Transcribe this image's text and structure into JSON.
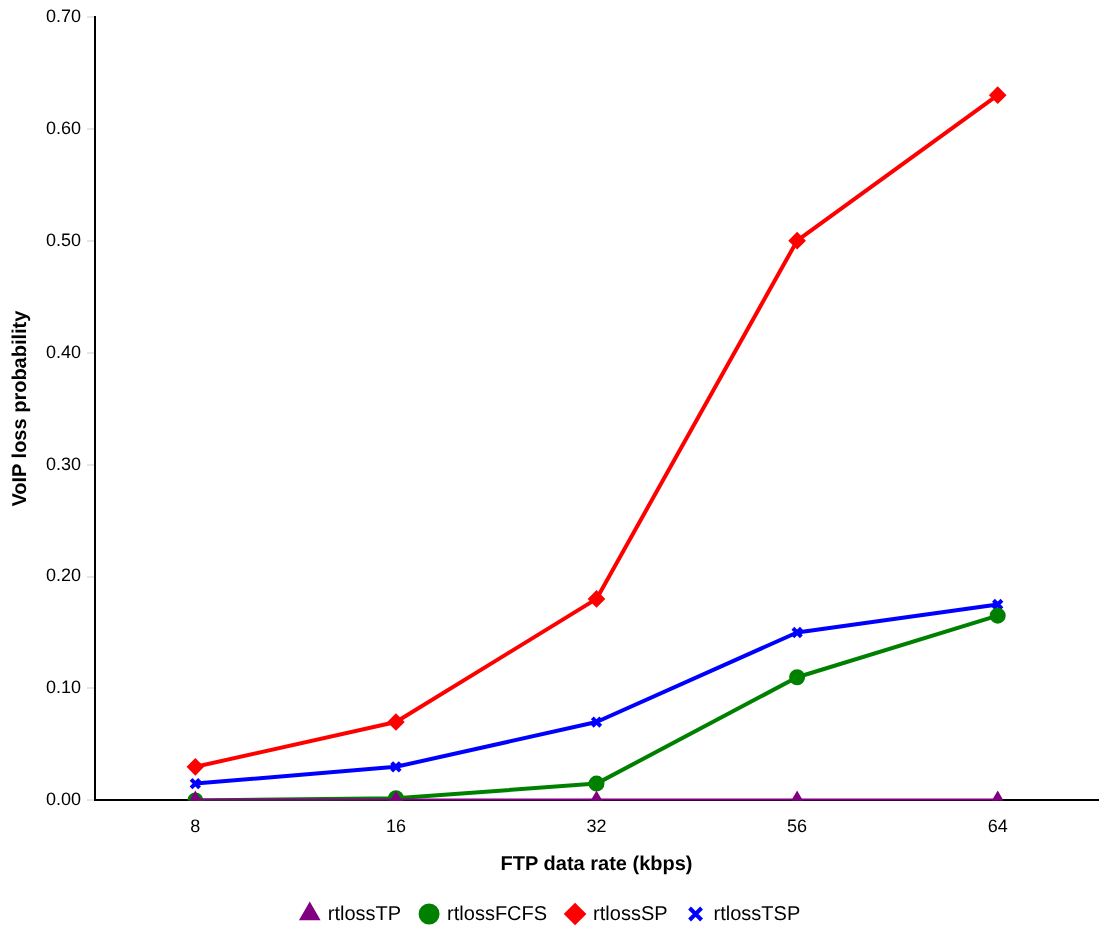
{
  "chart_data": {
    "type": "line",
    "xlabel": "FTP data rate (kbps)",
    "ylabel": "VoIP loss probability",
    "categories": [
      "8",
      "16",
      "32",
      "56",
      "64"
    ],
    "series": [
      {
        "name": "rtlossTP",
        "color": "#800080",
        "marker": "triangle",
        "values": [
          0,
          0,
          0,
          0,
          0
        ]
      },
      {
        "name": "rtlossFCFS",
        "color": "#008000",
        "marker": "circle",
        "values": [
          0,
          0.002,
          0.015,
          0.11,
          0.165
        ]
      },
      {
        "name": "rtlossSP",
        "color": "#ff0000",
        "marker": "diamond",
        "values": [
          0.03,
          0.07,
          0.18,
          0.5,
          0.63
        ]
      },
      {
        "name": "rtlossTSP",
        "color": "#0000ff",
        "marker": "cross",
        "values": [
          0.015,
          0.03,
          0.07,
          0.15,
          0.175
        ]
      }
    ],
    "ylim": [
      0,
      0.7
    ],
    "yticks": [
      {
        "value": 0,
        "label": "0.00"
      },
      {
        "value": 0.1,
        "label": "0.10"
      },
      {
        "value": 0.2,
        "label": "0.20"
      },
      {
        "value": 0.3,
        "label": "0.30"
      },
      {
        "value": 0.4,
        "label": "0.40"
      },
      {
        "value": 0.5,
        "label": "0.50"
      },
      {
        "value": 0.6,
        "label": "0.60"
      },
      {
        "value": 0.7,
        "label": "0.70"
      }
    ],
    "grid": false,
    "legend": "bottom"
  }
}
